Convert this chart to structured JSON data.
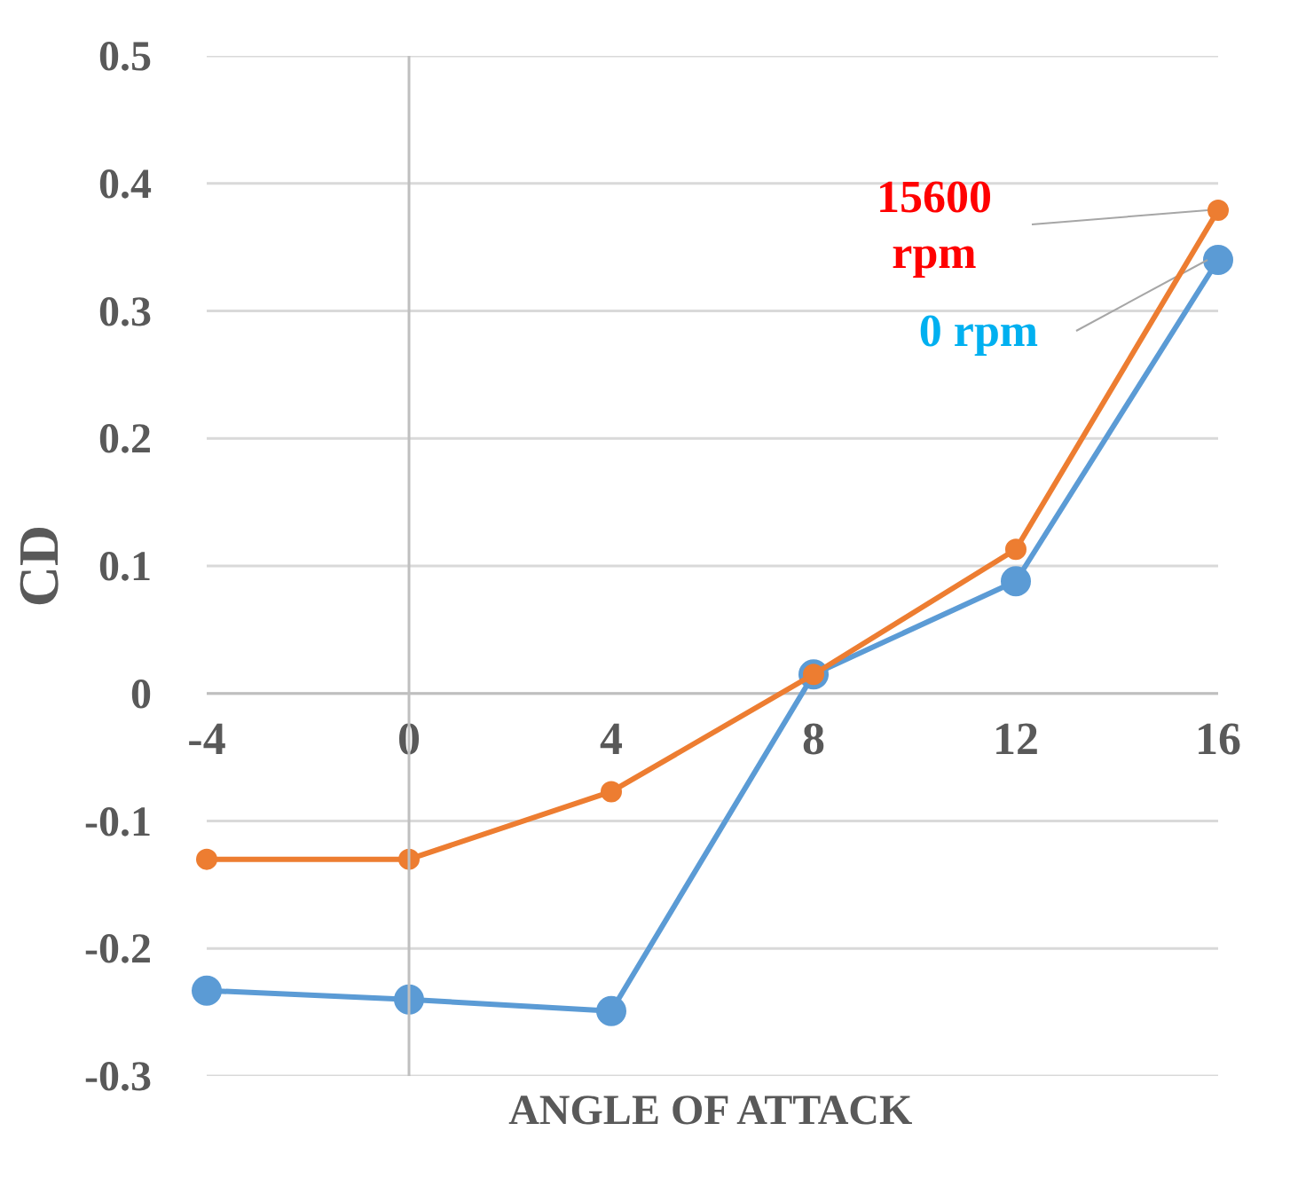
{
  "chart_data": {
    "type": "line",
    "xlabel": "ANGLE OF ATTACK",
    "ylabel": "CD",
    "x": [
      -4,
      0,
      4,
      8,
      12,
      16
    ],
    "series": [
      {
        "name": "15600 rpm",
        "color": "#ed7d31",
        "values": [
          -0.13,
          -0.13,
          -0.077,
          0.015,
          0.113,
          0.379
        ]
      },
      {
        "name": "0 rpm",
        "color": "#5b9bd5",
        "values": [
          -0.233,
          -0.24,
          -0.249,
          0.015,
          0.088,
          0.34
        ]
      }
    ],
    "xlim": [
      -4,
      16
    ],
    "xticks": [
      -4,
      0,
      4,
      8,
      12,
      16
    ],
    "ylim": [
      -0.3,
      0.5
    ],
    "yticks": [
      -0.3,
      -0.2,
      -0.1,
      0,
      0.1,
      0.2,
      0.3,
      0.4,
      0.5
    ],
    "grid": "y",
    "marker": "circle",
    "line_style": "solid"
  }
}
